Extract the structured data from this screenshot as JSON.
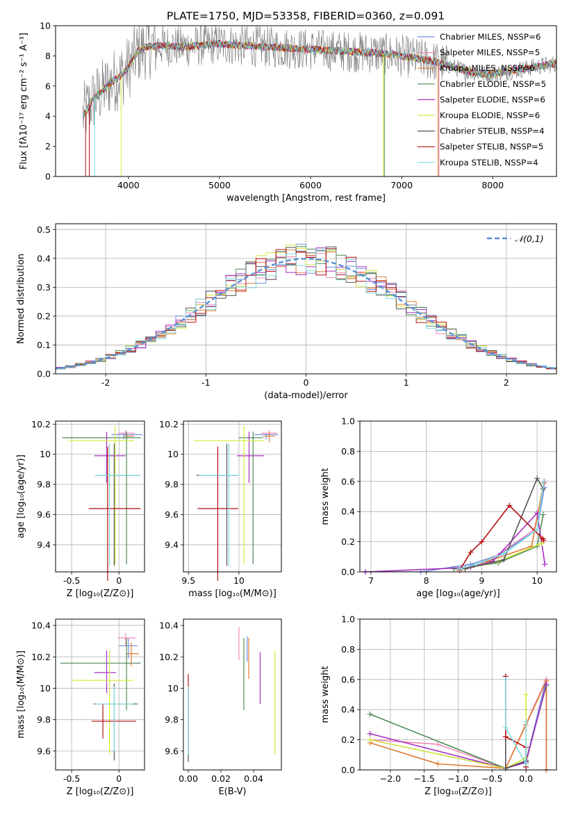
{
  "figure_title": "PLATE=1750, MJD=53358, FIBERID=0360, z=0.091",
  "model_colors": {
    "Chabrier MILES": "#6f8fe0",
    "Salpeter MILES": "#f08ab8",
    "Kroupa MILES": "#e07a30",
    "Chabrier ELODIE": "#4d8a57",
    "Salpeter ELODIE": "#a62ec0",
    "Kroupa ELODIE": "#d9e83a",
    "Chabrier STELIB": "#555555",
    "Salpeter STELIB": "#b80e0e",
    "Kroupa STELIB": "#7fdbe0"
  },
  "chart_data": [
    {
      "id": "spectrum",
      "type": "line",
      "xlabel": "wavelength [Angstrom, rest frame]",
      "ylabel": "Flux [fλ10⁻¹⁷ erg cm⁻² s⁻¹ A⁻¹]",
      "xlim": [
        3200,
        8700
      ],
      "ylim": [
        0,
        10
      ],
      "xticks": [
        4000,
        5000,
        6000,
        7000,
        8000
      ],
      "yticks": [
        0,
        2,
        4,
        6,
        8,
        10
      ],
      "legend_position": "top-right",
      "legend": [
        "Chabrier MILES, NSSP=6",
        "Salpeter MILES, NSSP=5",
        "Kroupa MILES, NSSP=6",
        "Chabrier ELODIE, NSSP=5",
        "Salpeter ELODIE, NSSP=6",
        "Kroupa ELODIE, NSSP=6",
        "Chabrier STELIB, NSSP=4",
        "Salpeter STELIB, NSSP=5",
        "Kroupa STELIB, NSSP=4"
      ],
      "continuum": {
        "x": [
          3500,
          3600,
          3700,
          3800,
          3900,
          4000,
          4100,
          4200,
          4400,
          4600,
          4800,
          5000,
          5200,
          5500,
          5800,
          6100,
          6400,
          6700,
          7000,
          7300,
          7500,
          7700,
          7900,
          8100,
          8300,
          8500,
          8700
        ],
        "y": [
          4.0,
          5.0,
          5.6,
          6.2,
          6.6,
          7.2,
          8.3,
          8.6,
          8.7,
          8.6,
          8.7,
          8.8,
          8.7,
          8.6,
          8.5,
          8.4,
          8.3,
          8.2,
          8.0,
          7.7,
          7.4,
          7.0,
          6.8,
          6.9,
          7.1,
          7.3,
          7.5
        ]
      }
    },
    {
      "id": "residuals",
      "type": "line",
      "xlabel": "(data-model)/error",
      "ylabel": "Normed distribution",
      "xlim": [
        -2.5,
        2.5
      ],
      "ylim": [
        0,
        0.52
      ],
      "xticks": [
        -2,
        -1,
        0,
        1,
        2
      ],
      "yticks": [
        0.0,
        0.1,
        0.2,
        0.3,
        0.4,
        0.5
      ],
      "grid": true,
      "legend_position": "top-right",
      "reference_curve": {
        "label": "𝒩(0,1)",
        "mean": 0,
        "sigma": 1,
        "color": "#5b8fd6"
      },
      "bin_width": 0.1
    },
    {
      "id": "age_vs_Z",
      "type": "scatter",
      "xlabel": "Z [log₁₀(Z/Z⊙)]",
      "ylabel": "age  [log₁₀(age/yr)]",
      "xlim": [
        -0.67,
        0.27
      ],
      "ylim": [
        9.22,
        10.22
      ],
      "xticks": [
        -0.5,
        0.0
      ],
      "yticks": [
        9.4,
        9.6,
        9.8,
        10.0,
        10.2
      ],
      "grid": true,
      "points": [
        {
          "model": "Chabrier MILES",
          "x": 0.05,
          "xerr": [
            0.13,
            0.2
          ],
          "y": 10.13,
          "yerr": [
            0.03,
            0.01
          ]
        },
        {
          "model": "Salpeter MILES",
          "x": 0.07,
          "xerr": [
            0.08,
            0.1
          ],
          "y": 10.14,
          "yerr": [
            0.02,
            0.02
          ]
        },
        {
          "model": "Kroupa MILES",
          "x": 0.08,
          "xerr": [
            0.02,
            0.08
          ],
          "y": 10.12,
          "yerr": [
            0.04,
            0.03
          ]
        },
        {
          "model": "Chabrier ELODIE",
          "x": 0.08,
          "xerr": [
            0.68,
            0.15
          ],
          "y": 10.11,
          "yerr": [
            0.84,
            0.04
          ]
        },
        {
          "model": "Salpeter ELODIE",
          "x": -0.13,
          "xerr": [
            0.13,
            0.2
          ],
          "y": 9.99,
          "yerr": [
            0.18,
            0.16
          ]
        },
        {
          "model": "Kroupa ELODIE",
          "x": -0.04,
          "xerr": [
            0.5,
            0.2
          ],
          "y": 10.09,
          "yerr": [
            0.82,
            0.1
          ]
        },
        {
          "model": "Chabrier STELIB",
          "x": -0.05,
          "xerr": [
            0.2,
            0.26
          ],
          "y": 9.86,
          "yerr": [
            0.6,
            0.21
          ]
        },
        {
          "model": "Salpeter STELIB",
          "x": -0.12,
          "xerr": [
            0.2,
            0.35
          ],
          "y": 9.64,
          "yerr": [
            0.48,
            0.41
          ]
        },
        {
          "model": "Kroupa STELIB",
          "x": -0.1,
          "xerr": [
            0.15,
            0.33
          ],
          "y": 9.86,
          "yerr": [
            0.6,
            0.21
          ]
        }
      ]
    },
    {
      "id": "age_vs_mass",
      "type": "scatter",
      "xlabel": "mass [log₁₀(M/M⊙)]",
      "ylabel": "",
      "xlim": [
        9.45,
        10.42
      ],
      "ylim": [
        9.22,
        10.22
      ],
      "xticks": [
        9.5,
        10.0
      ],
      "yticks": [
        9.4,
        9.6,
        9.8,
        10.0,
        10.2
      ],
      "grid": true,
      "points": [
        {
          "model": "Chabrier MILES",
          "x": 10.27,
          "xerr": [
            0.12,
            0.12
          ],
          "y": 10.13,
          "yerr": [
            0.03,
            0.01
          ]
        },
        {
          "model": "Salpeter MILES",
          "x": 10.3,
          "xerr": [
            0.08,
            0.08
          ],
          "y": 10.14,
          "yerr": [
            0.02,
            0.02
          ]
        },
        {
          "model": "Kroupa MILES",
          "x": 10.3,
          "xerr": [
            0.06,
            0.06
          ],
          "y": 10.12,
          "yerr": [
            0.04,
            0.03
          ]
        },
        {
          "model": "Chabrier ELODIE",
          "x": 10.14,
          "xerr": [
            0.14,
            0.1
          ],
          "y": 10.11,
          "yerr": [
            0.84,
            0.04
          ]
        },
        {
          "model": "Salpeter ELODIE",
          "x": 10.1,
          "xerr": [
            0.12,
            0.15
          ],
          "y": 9.99,
          "yerr": [
            0.18,
            0.16
          ]
        },
        {
          "model": "Kroupa ELODIE",
          "x": 10.05,
          "xerr": [
            0.5,
            0.2
          ],
          "y": 10.09,
          "yerr": [
            0.82,
            0.1
          ]
        },
        {
          "model": "Chabrier STELIB",
          "x": 9.88,
          "xerr": [
            0.3,
            0.1
          ],
          "y": 9.86,
          "yerr": [
            0.6,
            0.21
          ]
        },
        {
          "model": "Salpeter STELIB",
          "x": 9.79,
          "xerr": [
            0.2,
            0.2
          ],
          "y": 9.64,
          "yerr": [
            0.48,
            0.41
          ]
        },
        {
          "model": "Kroupa STELIB",
          "x": 9.9,
          "xerr": [
            0.3,
            0.1
          ],
          "y": 9.86,
          "yerr": [
            0.6,
            0.21
          ]
        }
      ]
    },
    {
      "id": "mass_weight_vs_age",
      "type": "line",
      "xlabel": "age  [log₁₀(age/yr)]",
      "ylabel": "mass weight",
      "xlim": [
        6.8,
        10.35
      ],
      "ylim": [
        0,
        1
      ],
      "xticks": [
        7,
        8,
        9,
        10
      ],
      "yticks": [
        0.0,
        0.2,
        0.4,
        0.6,
        0.8,
        1.0
      ],
      "grid": true,
      "series": [
        {
          "model": "Chabrier MILES",
          "x": [
            6.9,
            7.9,
            8.8,
            9.3,
            10.0,
            10.13
          ],
          "y": [
            0.0,
            0.0,
            0.05,
            0.11,
            0.28,
            0.56
          ]
        },
        {
          "model": "Salpeter MILES",
          "x": [
            8.7,
            9.2,
            9.95,
            10.14
          ],
          "y": [
            0.02,
            0.09,
            0.28,
            0.6
          ]
        },
        {
          "model": "Kroupa MILES",
          "x": [
            8.6,
            9.1,
            9.9,
            10.12
          ],
          "y": [
            0.02,
            0.07,
            0.17,
            0.59
          ]
        },
        {
          "model": "Chabrier ELODIE",
          "x": [
            8.5,
            9.3,
            10.0,
            10.11
          ],
          "y": [
            0.02,
            0.06,
            0.17,
            0.38
          ]
        },
        {
          "model": "Salpeter ELODIE",
          "x": [
            6.9,
            8.8,
            9.2,
            10.0,
            10.14
          ],
          "y": [
            0.0,
            0.03,
            0.07,
            0.39,
            0.05
          ]
        },
        {
          "model": "Kroupa ELODIE",
          "x": [
            8.7,
            9.3,
            10.09
          ],
          "y": [
            0.02,
            0.07,
            0.19
          ]
        },
        {
          "model": "Chabrier STELIB",
          "x": [
            8.7,
            9.4,
            10.0,
            10.11
          ],
          "y": [
            0.02,
            0.08,
            0.62,
            0.55
          ]
        },
        {
          "model": "Salpeter STELIB",
          "x": [
            8.6,
            8.8,
            9.0,
            9.5,
            10.1,
            10.12
          ],
          "y": [
            0.01,
            0.13,
            0.2,
            0.44,
            0.22,
            0.21
          ]
        },
        {
          "model": "Kroupa STELIB",
          "x": [
            8.6,
            8.9,
            9.4,
            10.0,
            10.12
          ],
          "y": [
            0.02,
            0.05,
            0.12,
            0.28,
            0.6
          ]
        }
      ]
    },
    {
      "id": "mass_vs_Z",
      "type": "scatter",
      "xlabel": "Z [log₁₀(Z/Z⊙)]",
      "ylabel": "mass [log₁₀(M/M⊙)]",
      "xlim": [
        -0.67,
        0.27
      ],
      "ylim": [
        9.48,
        10.44
      ],
      "xticks": [
        -0.5,
        0.0
      ],
      "yticks": [
        9.6,
        9.8,
        10.0,
        10.2,
        10.4
      ],
      "grid": true,
      "points": [
        {
          "model": "Chabrier MILES",
          "x": 0.1,
          "xerr": [
            0.1,
            0.1
          ],
          "y": 10.27,
          "yerr": [
            0.08,
            0.05
          ]
        },
        {
          "model": "Salpeter MILES",
          "x": 0.07,
          "xerr": [
            0.08,
            0.11
          ],
          "y": 10.32,
          "yerr": [
            0.05,
            0.03
          ]
        },
        {
          "model": "Kroupa MILES",
          "x": 0.13,
          "xerr": [
            0.05,
            0.08
          ],
          "y": 10.22,
          "yerr": [
            0.08,
            0.07
          ]
        },
        {
          "model": "Chabrier ELODIE",
          "x": 0.08,
          "xerr": [
            0.7,
            0.15
          ],
          "y": 10.16,
          "yerr": [
            0.3,
            0.16
          ]
        },
        {
          "model": "Salpeter ELODIE",
          "x": -0.13,
          "xerr": [
            0.13,
            0.1
          ],
          "y": 10.1,
          "yerr": [
            0.13,
            0.14
          ]
        },
        {
          "model": "Kroupa ELODIE",
          "x": -0.1,
          "xerr": [
            0.4,
            0.25
          ],
          "y": 10.05,
          "yerr": [
            0.47,
            0.19
          ]
        },
        {
          "model": "Chabrier STELIB",
          "x": -0.05,
          "xerr": [
            0.22,
            0.25
          ],
          "y": 9.9,
          "yerr": [
            0.36,
            0.13
          ]
        },
        {
          "model": "Salpeter STELIB",
          "x": -0.17,
          "xerr": [
            0.12,
            0.35
          ],
          "y": 9.79,
          "yerr": [
            0.11,
            0.11
          ]
        },
        {
          "model": "Kroupa STELIB",
          "x": -0.05,
          "xerr": [
            0.2,
            0.2
          ],
          "y": 9.9,
          "yerr": [
            0.3,
            0.11
          ]
        }
      ]
    },
    {
      "id": "mass_vs_EBV",
      "type": "scatter",
      "xlabel": "E(B-V)",
      "ylabel": "",
      "xlim": [
        -0.003,
        0.057
      ],
      "ylim": [
        9.48,
        10.44
      ],
      "xticks": [
        0.0,
        0.02,
        0.04
      ],
      "xticklabels": [
        "0.00",
        "0.02",
        "0.04"
      ],
      "yticks": [
        9.6,
        9.8,
        10.0,
        10.2,
        10.4
      ],
      "grid": false,
      "points": [
        {
          "model": "Chabrier MILES",
          "x": 0.036,
          "y": 10.27,
          "yerr": [
            0.1,
            0.06
          ]
        },
        {
          "model": "Salpeter MILES",
          "x": 0.031,
          "y": 10.29,
          "yerr": [
            0.11,
            0.1
          ]
        },
        {
          "model": "Kroupa MILES",
          "x": 0.037,
          "y": 10.2,
          "yerr": [
            0.14,
            0.12
          ]
        },
        {
          "model": "Chabrier ELODIE",
          "x": 0.034,
          "y": 10.1,
          "yerr": [
            0.24,
            0.22
          ]
        },
        {
          "model": "Salpeter ELODIE",
          "x": 0.044,
          "y": 10.08,
          "yerr": [
            0.18,
            0.15
          ]
        },
        {
          "model": "Kroupa ELODIE",
          "x": 0.053,
          "y": 9.9,
          "yerr": [
            0.32,
            0.34
          ]
        },
        {
          "model": "Chabrier STELIB",
          "x": 0.0,
          "y": 9.75,
          "yerr": [
            0.22,
            0.24
          ]
        },
        {
          "model": "Salpeter STELIB",
          "x": 0.0,
          "y": 9.85,
          "yerr": [
            0.25,
            0.24
          ]
        },
        {
          "model": "Kroupa STELIB",
          "x": 0.0,
          "y": 9.8,
          "yerr": [
            0.22,
            0.21
          ]
        }
      ]
    },
    {
      "id": "mass_weight_vs_Z",
      "type": "line",
      "xlabel": "Z [log₁₀(Z/Z⊙)]",
      "ylabel": "mass weight",
      "xlim": [
        -2.45,
        0.45
      ],
      "ylim": [
        0,
        1
      ],
      "xticks": [
        -2.0,
        -1.5,
        -1.0,
        -0.5,
        0.0
      ],
      "xticklabels": [
        "−2.0",
        "−1.5",
        "−1.0",
        "−0.5",
        "0.0"
      ],
      "yticks": [
        0.0,
        0.2,
        0.4,
        0.6,
        0.8,
        1.0
      ],
      "grid": true,
      "series": [
        {
          "model": "Chabrier MILES",
          "x": [
            -2.3,
            -0.3,
            0.0,
            0.3,
            0.3
          ],
          "y": [
            0.2,
            0.01,
            0.06,
            0.6,
            0.0
          ]
        },
        {
          "model": "Salpeter MILES",
          "x": [
            -2.3,
            -1.3,
            -0.3,
            0.3,
            0.3
          ],
          "y": [
            0.2,
            0.17,
            0.01,
            0.6,
            0.0
          ]
        },
        {
          "model": "Kroupa MILES",
          "x": [
            -2.3,
            -1.3,
            -0.3,
            0.0,
            0.3,
            0.3
          ],
          "y": [
            0.18,
            0.04,
            0.01,
            0.3,
            0.59,
            0.0
          ]
        },
        {
          "model": "Chabrier ELODIE",
          "x": [
            -2.3,
            -0.3,
            0.0,
            0.3
          ],
          "y": [
            0.37,
            0.01,
            0.06,
            0.56
          ]
        },
        {
          "model": "Salpeter ELODIE",
          "x": [
            -2.3,
            -0.3,
            0.0,
            0.3
          ],
          "y": [
            0.24,
            0.01,
            0.05,
            0.57
          ]
        },
        {
          "model": "Kroupa ELODIE",
          "x": [
            -2.3,
            -0.3,
            0.0,
            0.0
          ],
          "y": [
            0.2,
            0.01,
            0.08,
            0.5
          ]
        },
        {
          "model": "Chabrier STELIB",
          "x": [
            -0.3,
            -0.3,
            0.0,
            0.0
          ],
          "y": [
            0.62,
            0.01,
            0.06,
            0.02
          ]
        },
        {
          "model": "Salpeter STELIB",
          "x": [
            -0.3,
            -0.3,
            0.0,
            0.0
          ],
          "y": [
            0.62,
            0.22,
            0.15,
            0.02
          ]
        },
        {
          "model": "Kroupa STELIB",
          "x": [
            -0.3,
            -0.3,
            0.0,
            0.0
          ],
          "y": [
            0.6,
            0.28,
            0.04,
            0.32
          ]
        }
      ]
    }
  ]
}
